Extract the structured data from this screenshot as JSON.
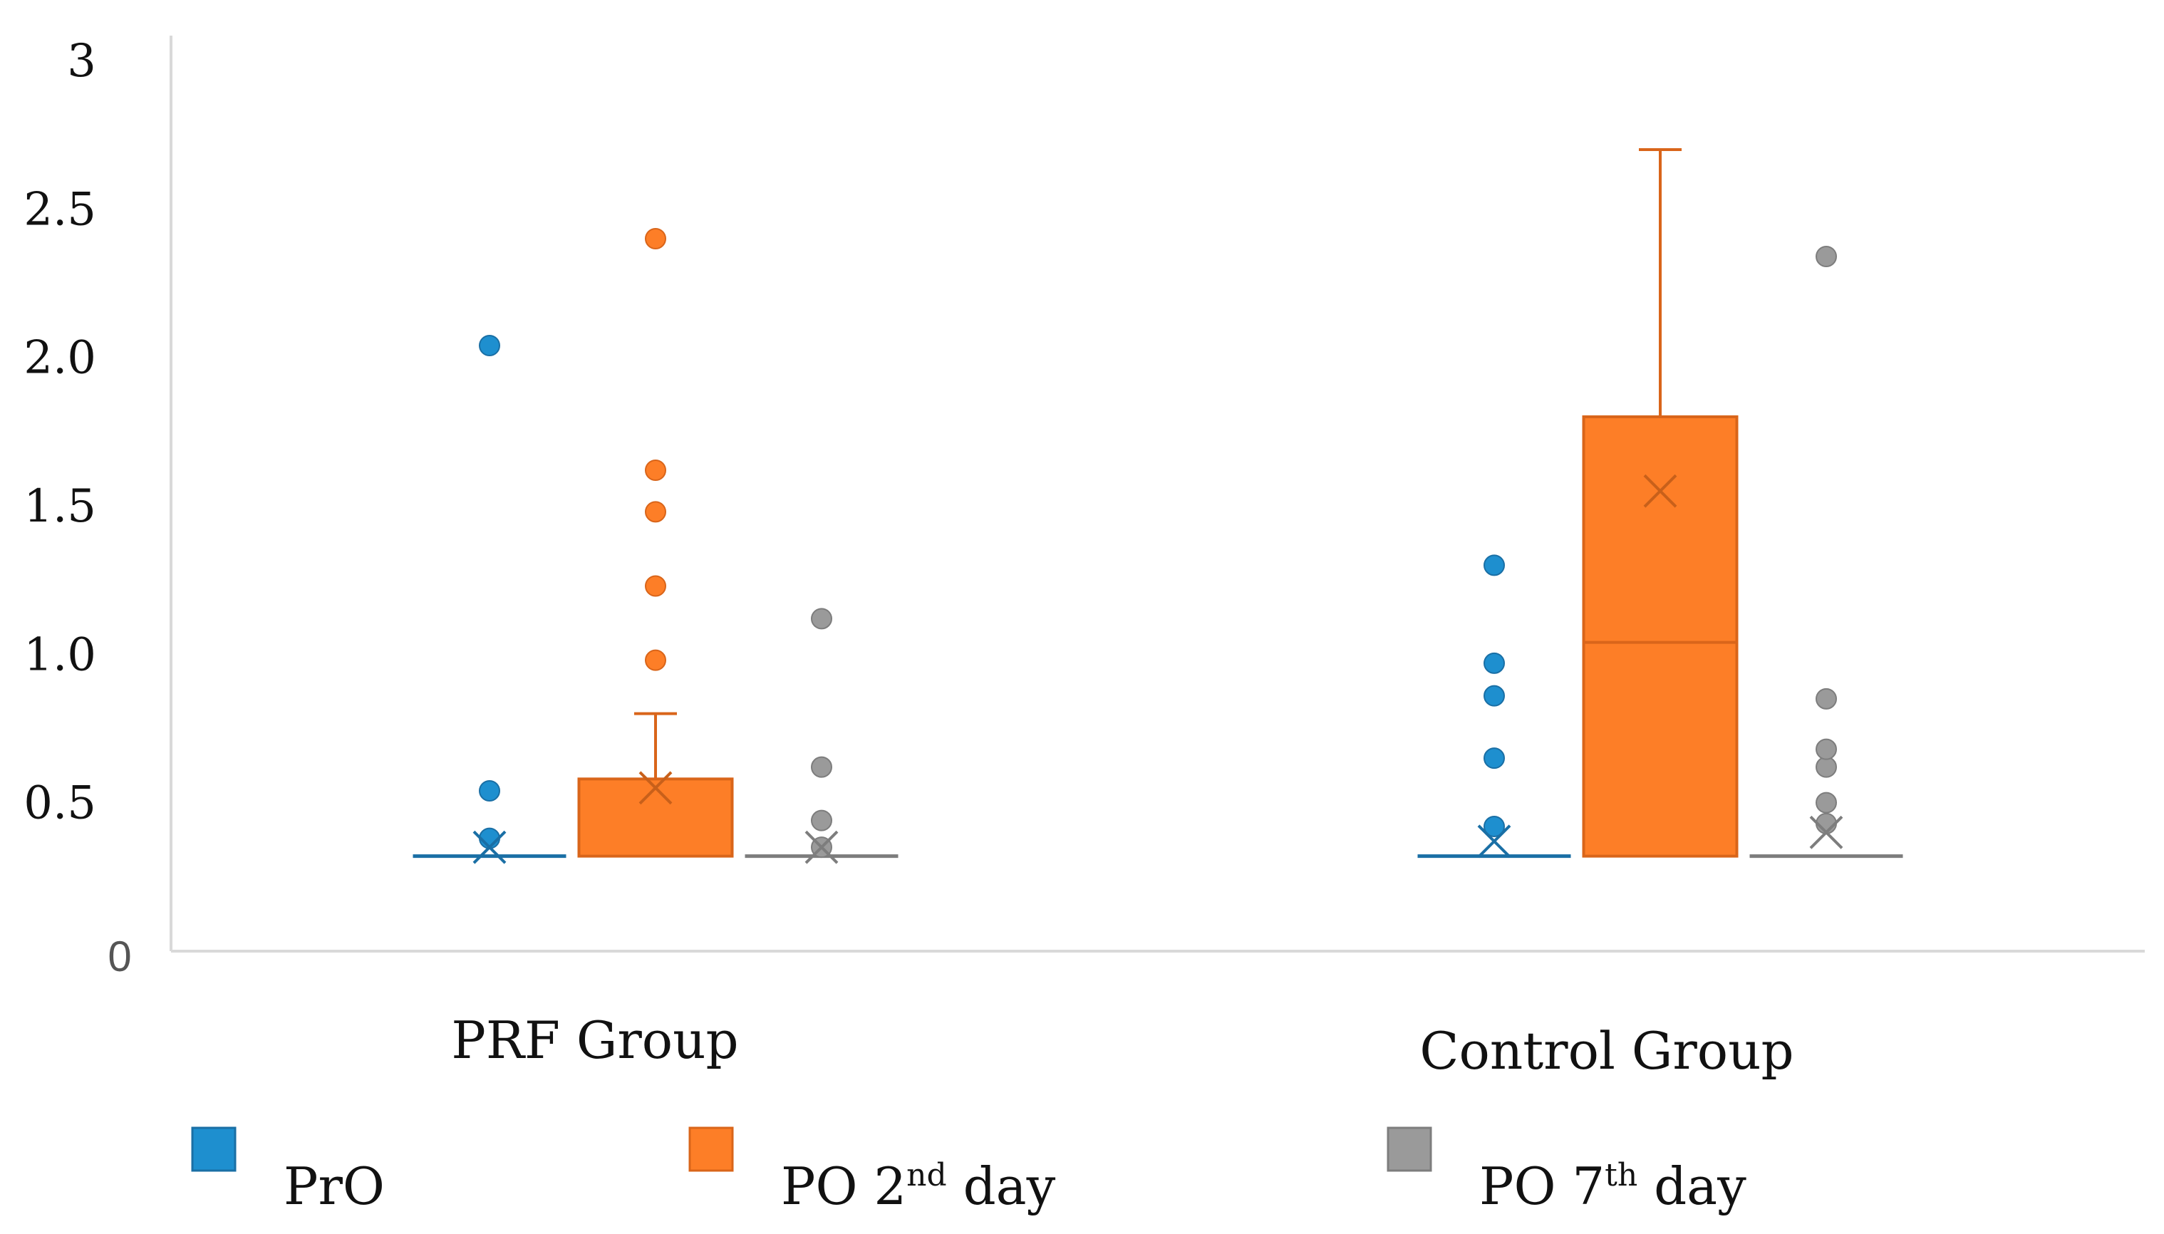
{
  "chart_data": {
    "type": "box",
    "categories": [
      "PRF Group",
      "Control Group"
    ],
    "ylim": [
      0,
      3
    ],
    "yticks": [
      {
        "value": 0,
        "label": "0"
      },
      {
        "value": 0.5,
        "label": "0.5"
      },
      {
        "value": 1.0,
        "label": "1.0"
      },
      {
        "value": 1.5,
        "label": "1.5"
      },
      {
        "value": 2.0,
        "label": "2.0"
      },
      {
        "value": 2.5,
        "label": "2.5"
      },
      {
        "value": 3,
        "label": "3"
      }
    ],
    "grid": false,
    "legend_position": "bottom",
    "series": [
      {
        "name": "PrO",
        "legend": {
          "main": "PrO",
          "sup": "",
          "after": ""
        },
        "color": "#1e8fcf",
        "edge": "#1a6fa5",
        "boxes": [
          {
            "category": "PRF Group",
            "min": 0.32,
            "q1": 0.32,
            "median": 0.32,
            "q3": 0.32,
            "max": 0.32,
            "mean": 0.35,
            "outliers": [
              0.38,
              0.54,
              2.04
            ]
          },
          {
            "category": "Control Group",
            "min": 0.32,
            "q1": 0.32,
            "median": 0.32,
            "q3": 0.32,
            "max": 0.32,
            "mean": 0.37,
            "outliers": [
              0.42,
              0.65,
              0.86,
              0.97,
              1.3
            ]
          }
        ]
      },
      {
        "name": "PO 2nd day",
        "legend": {
          "main": "PO 2",
          "sup": "nd",
          "after": " day"
        },
        "color": "#fd7e27",
        "edge": "#d9651a",
        "boxes": [
          {
            "category": "PRF Group",
            "min": 0.32,
            "q1": 0.32,
            "median": 0.32,
            "q3": 0.58,
            "max": 0.8,
            "mean": 0.55,
            "outliers": [
              0.98,
              1.23,
              1.48,
              1.62,
              2.4
            ]
          },
          {
            "category": "Control Group",
            "min": 0.32,
            "q1": 0.32,
            "median": 1.04,
            "q3": 1.8,
            "max": 2.7,
            "mean": 1.55,
            "outliers": []
          }
        ]
      },
      {
        "name": "PO 7th day",
        "legend": {
          "main": "PO 7",
          "sup": "th",
          "after": " day"
        },
        "color": "#9a9a9a",
        "edge": "#7d7d7d",
        "boxes": [
          {
            "category": "PRF Group",
            "min": 0.32,
            "q1": 0.32,
            "median": 0.32,
            "q3": 0.32,
            "max": 0.32,
            "mean": 0.35,
            "outliers": [
              0.35,
              0.44,
              0.62,
              1.12
            ]
          },
          {
            "category": "Control Group",
            "min": 0.32,
            "q1": 0.32,
            "median": 0.32,
            "q3": 0.32,
            "max": 0.32,
            "mean": 0.4,
            "outliers": [
              0.43,
              0.5,
              0.62,
              0.68,
              0.85,
              2.34
            ]
          }
        ]
      }
    ]
  }
}
